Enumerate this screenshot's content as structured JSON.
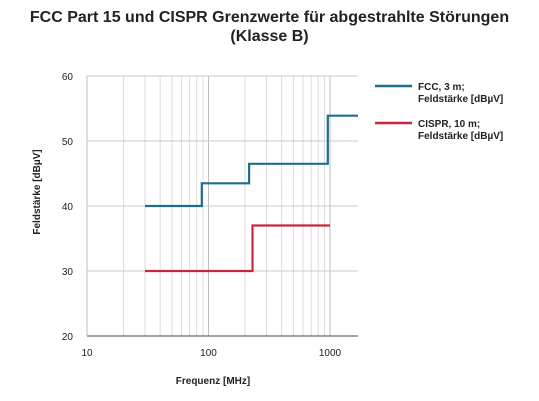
{
  "chart_data": {
    "type": "line",
    "title_lines": [
      "FCC Part 15 und CISPR Grenzwerte für abgestrahlte Störungen",
      "(Klasse B)"
    ],
    "xlabel": "Frequenz [MHz]",
    "ylabel": "Feldstärke [dBµV]",
    "xscale": "log",
    "xlim": [
      10,
      1700
    ],
    "ylim": [
      20,
      60
    ],
    "xticks": [
      10,
      100,
      1000
    ],
    "xtick_labels": [
      "10",
      "100",
      "1000"
    ],
    "yticks": [
      20,
      30,
      40,
      50,
      60
    ],
    "ytick_labels": [
      "20",
      "30",
      "40",
      "50",
      "60"
    ],
    "grid": true,
    "legend_position": "right",
    "series": [
      {
        "name_lines": [
          "FCC, 3 m;",
          "Feldstärke [dBµV]"
        ],
        "color": "#1f6f8b",
        "x": [
          30,
          88,
          88,
          216,
          216,
          960,
          960,
          1700
        ],
        "y": [
          40,
          40,
          43.5,
          43.5,
          46.5,
          46.5,
          53.9,
          53.9
        ]
      },
      {
        "name_lines": [
          "CISPR, 10 m;",
          "Feldstärke [dBµV]"
        ],
        "color": "#c8283d",
        "x": [
          30,
          230,
          230,
          1000
        ],
        "y": [
          30,
          30,
          37,
          37
        ]
      }
    ]
  }
}
